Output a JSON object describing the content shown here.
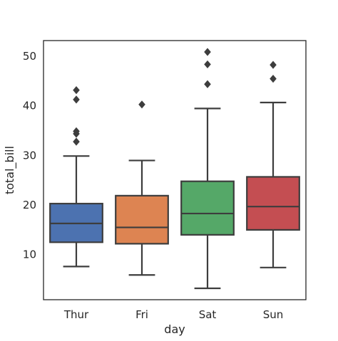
{
  "chart_data": {
    "type": "box",
    "xlabel": "day",
    "ylabel": "total_bill",
    "categories": [
      "Thur",
      "Fri",
      "Sat",
      "Sun"
    ],
    "colors": [
      "#4c72b0",
      "#dd8452",
      "#55a868",
      "#c44e52"
    ],
    "edge_color": "#3d3d3d",
    "ylim": [
      0,
      53
    ],
    "yticks": [
      10,
      20,
      30,
      40,
      50
    ],
    "grid": false,
    "boxes": [
      {
        "category": "Thur",
        "whislo": 7.5,
        "q1": 12.4,
        "median": 16.2,
        "q3": 20.2,
        "whishi": 29.8,
        "fliers": [
          32.7,
          34.3,
          34.8,
          41.2,
          43.1
        ]
      },
      {
        "category": "Fri",
        "whislo": 5.8,
        "q1": 12.1,
        "median": 15.4,
        "q3": 21.8,
        "whishi": 28.9,
        "fliers": [
          40.2
        ]
      },
      {
        "category": "Sat",
        "whislo": 3.1,
        "q1": 13.9,
        "median": 18.2,
        "q3": 24.7,
        "whishi": 39.4,
        "fliers": [
          44.3,
          48.3,
          50.8
        ]
      },
      {
        "category": "Sun",
        "whislo": 7.3,
        "q1": 14.9,
        "median": 19.6,
        "q3": 25.6,
        "whishi": 40.6,
        "fliers": [
          45.4,
          48.2
        ]
      }
    ]
  }
}
